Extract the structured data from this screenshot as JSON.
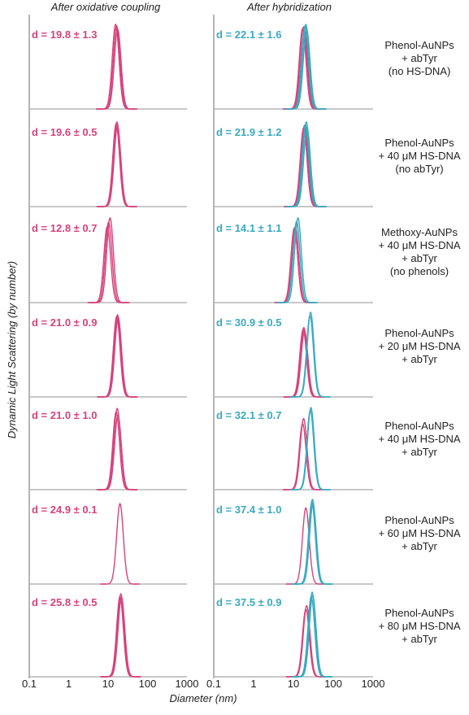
{
  "figure": {
    "left_title": "After oxidative coupling",
    "right_title": "After hybridization",
    "y_label": "Dynamic Light Scattering (by number)",
    "x_label": "Diameter (nm)"
  },
  "colors": {
    "pink": "#d6437c",
    "teal": "#3aaabf",
    "axis": "#b5b5b5"
  },
  "chart_data": {
    "type": "line",
    "x_scale": "log",
    "xlim": [
      0.1,
      1000
    ],
    "x_ticks": [
      "0.1",
      "1",
      "10",
      "100",
      "1000"
    ],
    "x_tick_values": [
      0.1,
      1,
      10,
      100,
      1000
    ],
    "xlabel": "Diameter (nm)",
    "ylabel": "Dynamic Light Scattering (by number)",
    "panels": [
      {
        "condition": [
          "Phenol-AuNPs",
          "+ abTyr",
          "(no HS-DNA)"
        ],
        "left": {
          "label": "d = 19.8 ± 1.3",
          "curves": [
            {
              "peak": 15.5,
              "height": 1.0
            },
            {
              "peak": 16.5,
              "height": 0.98
            },
            {
              "peak": 17.5,
              "height": 0.94
            }
          ]
        },
        "right": {
          "label": "d = 22.1 ± 1.6",
          "curves": [
            {
              "color": "pink",
              "peak": 17.0,
              "height": 0.95
            },
            {
              "color": "pink",
              "peak": 18.0,
              "height": 0.97
            },
            {
              "color": "pink",
              "peak": 19.0,
              "height": 0.9
            },
            {
              "color": "teal",
              "peak": 19.5,
              "height": 0.98
            },
            {
              "color": "teal",
              "peak": 20.5,
              "height": 1.0
            },
            {
              "color": "teal",
              "peak": 21.5,
              "height": 0.94
            }
          ]
        }
      },
      {
        "condition": [
          "Phenol-AuNPs",
          "+ 40 μM HS-DNA",
          "(no abTyr)"
        ],
        "left": {
          "label": "d = 19.6 ± 0.5",
          "curves": [
            {
              "peak": 16.0,
              "height": 0.98
            },
            {
              "peak": 16.8,
              "height": 1.0
            },
            {
              "peak": 17.3,
              "height": 0.95
            }
          ]
        },
        "right": {
          "label": "d = 21.9 ± 1.2",
          "curves": [
            {
              "color": "pink",
              "peak": 18.0,
              "height": 0.93
            },
            {
              "color": "pink",
              "peak": 19.0,
              "height": 0.96
            },
            {
              "color": "pink",
              "peak": 19.5,
              "height": 0.9
            },
            {
              "color": "teal",
              "peak": 20.0,
              "height": 0.97
            },
            {
              "color": "teal",
              "peak": 21.0,
              "height": 1.0
            },
            {
              "color": "teal",
              "peak": 22.0,
              "height": 0.93
            }
          ]
        }
      },
      {
        "condition": [
          "Methoxy-AuNPs",
          "+ 40 μM HS-DNA",
          "+ abTyr",
          "(no phenols)"
        ],
        "left": {
          "label": "d = 12.8 ± 0.7",
          "curves": [
            {
              "peak": 9.5,
              "height": 0.9
            },
            {
              "peak": 10.3,
              "height": 0.95
            },
            {
              "peak": 11.2,
              "height": 1.0
            }
          ]
        },
        "right": {
          "label": "d = 14.1 ± 1.1",
          "curves": [
            {
              "color": "pink",
              "peak": 10.5,
              "height": 0.88
            },
            {
              "color": "pink",
              "peak": 11.2,
              "height": 0.9
            },
            {
              "color": "teal",
              "peak": 12.0,
              "height": 0.96
            },
            {
              "color": "teal",
              "peak": 13.0,
              "height": 1.0
            }
          ]
        }
      },
      {
        "condition": [
          "Phenol-AuNPs",
          "+ 20 μM HS-DNA",
          "+ abTyr"
        ],
        "left": {
          "label": "d = 21.0 ± 0.9",
          "curves": [
            {
              "peak": 16.5,
              "height": 0.95
            },
            {
              "peak": 17.3,
              "height": 0.97
            },
            {
              "peak": 18.0,
              "height": 0.94
            }
          ]
        },
        "right": {
          "label": "d = 30.9 ± 0.5",
          "curves": [
            {
              "color": "pink",
              "peak": 17.5,
              "height": 0.8
            },
            {
              "color": "pink",
              "peak": 18.3,
              "height": 0.82
            },
            {
              "color": "pink",
              "peak": 19.0,
              "height": 0.78
            },
            {
              "color": "teal",
              "peak": 26.0,
              "height": 0.96
            },
            {
              "color": "teal",
              "peak": 27.0,
              "height": 1.0
            }
          ]
        }
      },
      {
        "condition": [
          "Phenol-AuNPs",
          "+ 40 μM HS-DNA",
          "+ abTyr"
        ],
        "left": {
          "label": "d = 21.0 ± 1.0",
          "curves": [
            {
              "peak": 16.0,
              "height": 0.92
            },
            {
              "peak": 17.0,
              "height": 0.96
            },
            {
              "peak": 17.8,
              "height": 0.88
            }
          ]
        },
        "right": {
          "label": "d = 32.1 ± 0.7",
          "curves": [
            {
              "color": "pink",
              "peak": 17.0,
              "height": 0.78
            },
            {
              "color": "pink",
              "peak": 18.0,
              "height": 0.84
            },
            {
              "color": "teal",
              "peak": 26.5,
              "height": 0.94
            },
            {
              "color": "teal",
              "peak": 27.5,
              "height": 0.97
            }
          ]
        }
      },
      {
        "condition": [
          "Phenol-AuNPs",
          "+ 60 μM HS-DNA",
          "+ abTyr"
        ],
        "left": {
          "label": "d = 24.9 ± 0.1",
          "curves": [
            {
              "peak": 20.0,
              "height": 0.95
            }
          ]
        },
        "right": {
          "label": "d = 37.4 ± 1.0",
          "curves": [
            {
              "color": "pink",
              "peak": 20.5,
              "height": 0.9
            },
            {
              "color": "teal",
              "peak": 29.0,
              "height": 0.97
            },
            {
              "color": "teal",
              "peak": 30.0,
              "height": 1.0
            },
            {
              "color": "teal",
              "peak": 31.0,
              "height": 0.95
            }
          ]
        }
      },
      {
        "condition": [
          "Phenol-AuNPs",
          "+ 80 μM HS-DNA",
          "+ abTyr"
        ],
        "left": {
          "label": "d = 25.8 ± 0.5",
          "curves": [
            {
              "peak": 20.0,
              "height": 0.95
            },
            {
              "peak": 21.0,
              "height": 0.98
            },
            {
              "peak": 21.8,
              "height": 0.94
            }
          ]
        },
        "right": {
          "label": "d = 37.5 ± 0.9",
          "curves": [
            {
              "color": "pink",
              "peak": 20.5,
              "height": 0.8
            },
            {
              "color": "pink",
              "peak": 21.5,
              "height": 0.84
            },
            {
              "color": "teal",
              "peak": 28.0,
              "height": 0.95
            },
            {
              "color": "teal",
              "peak": 29.5,
              "height": 1.0
            },
            {
              "color": "teal",
              "peak": 30.5,
              "height": 0.96
            }
          ]
        }
      }
    ]
  }
}
